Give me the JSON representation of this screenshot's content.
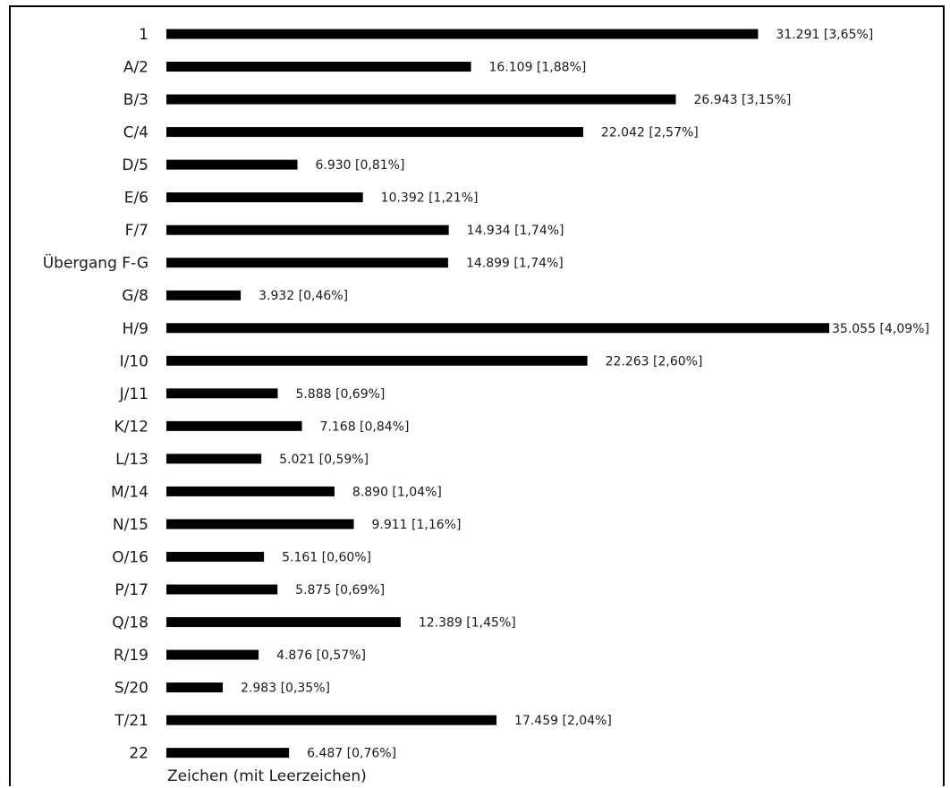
{
  "chart_data": {
    "type": "bar",
    "orientation": "horizontal",
    "categories": [
      "1",
      "A/2",
      "B/3",
      "C/4",
      "D/5",
      "E/6",
      "F/7",
      "Übergang F-G",
      "G/8",
      "H/9",
      "I/10",
      "J/11",
      "K/12",
      "L/13",
      "M/14",
      "N/15",
      "O/16",
      "P/17",
      "Q/18",
      "R/19",
      "S/20",
      "T/21",
      "22"
    ],
    "values": [
      31291,
      16109,
      26943,
      22042,
      6930,
      10392,
      14934,
      14899,
      3932,
      35055,
      22263,
      5888,
      7168,
      5021,
      8890,
      9911,
      5161,
      5875,
      12389,
      4876,
      2983,
      17459,
      6487
    ],
    "data_labels": [
      "31.291 [3,65%]",
      "16.109 [1,88%]",
      "26.943 [3,15%]",
      "22.042 [2,57%]",
      "6.930 [0,81%]",
      "10.392 [1,21%]",
      "14.934 [1,74%]",
      "14.899 [1,74%]",
      "3.932 [0,46%]",
      "35.055 [4,09%]",
      "22.263 [2,60%]",
      "5.888 [0,69%]",
      "7.168 [0,84%]",
      "5.021 [0,59%]",
      "8.890 [1,04%]",
      "9.911 [1,16%]",
      "5.161 [0,60%]",
      "5.875 [0,69%]",
      "12.389 [1,45%]",
      "4.876 [0,57%]",
      "2.983 [0,35%]",
      "17.459 [2,04%]",
      "6.487 [0,76%]"
    ],
    "xlabel": "Zeichen (mit Leerzeichen)",
    "ylabel": "",
    "title": "",
    "xlim": [
      0,
      35055
    ],
    "grid": false,
    "legend": "none",
    "bar_color": "#000000"
  }
}
